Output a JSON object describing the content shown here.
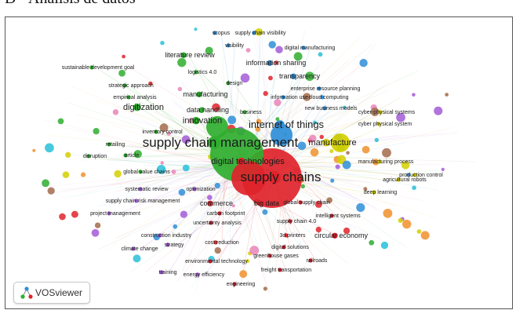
{
  "heading": "D - Análisis de datos",
  "software": "VOSviewer",
  "colors": {
    "red": "#e0232b",
    "green": "#2fae2f",
    "blue": "#2f8ed8",
    "yellow": "#d4cf00",
    "purple": "#a35ad6",
    "cyan": "#28c0d8",
    "orange": "#f0902c",
    "brown": "#a26b4b",
    "pink": "#e985b8"
  },
  "keywords": [
    {
      "label": "scopus",
      "color": "blue",
      "weight": 1
    },
    {
      "label": "supply chain visibility",
      "color": "blue",
      "weight": 1
    },
    {
      "label": "visibility",
      "color": "blue",
      "weight": 1
    },
    {
      "label": "digital manufacturing",
      "color": "blue",
      "weight": 1
    },
    {
      "label": "literature review",
      "color": "green",
      "weight": 2
    },
    {
      "label": "information sharing",
      "color": "blue",
      "weight": 2
    },
    {
      "label": "sustainable development goal",
      "color": "green",
      "weight": 1
    },
    {
      "label": "logistics 4.0",
      "color": "green",
      "weight": 1
    },
    {
      "label": "transparency",
      "color": "blue",
      "weight": 2
    },
    {
      "label": "enterprise resource planning",
      "color": "blue",
      "weight": 1
    },
    {
      "label": "strategic approach",
      "color": "green",
      "weight": 1
    },
    {
      "label": "design",
      "color": "green",
      "weight": 1
    },
    {
      "label": "empirical analysis",
      "color": "green",
      "weight": 1
    },
    {
      "label": "manufacturing",
      "color": "green",
      "weight": 2
    },
    {
      "label": "information use",
      "color": "blue",
      "weight": 1
    },
    {
      "label": "cloud computing",
      "color": "blue",
      "weight": 1
    },
    {
      "label": "digitization",
      "color": "green",
      "weight": 3
    },
    {
      "label": "new business models",
      "color": "blue",
      "weight": 1
    },
    {
      "label": "cyber-physical systems",
      "color": "yellow",
      "weight": 1
    },
    {
      "label": "data handling",
      "color": "green",
      "weight": 2
    },
    {
      "label": "business",
      "color": "green",
      "weight": 1
    },
    {
      "label": "cyber physical system",
      "color": "yellow",
      "weight": 1
    },
    {
      "label": "innovation",
      "color": "green",
      "weight": 3
    },
    {
      "label": "internet of things",
      "color": "blue",
      "weight": 4
    },
    {
      "label": "inventory control",
      "color": "green",
      "weight": 1
    },
    {
      "label": "supply chain management",
      "color": "green",
      "weight": 6
    },
    {
      "label": "manufacture",
      "color": "yellow",
      "weight": 3
    },
    {
      "label": "retailing",
      "color": "green",
      "weight": 1
    },
    {
      "label": "article",
      "color": "green",
      "weight": 1
    },
    {
      "label": "disruption",
      "color": "green",
      "weight": 1
    },
    {
      "label": "manufacturing process",
      "color": "yellow",
      "weight": 1
    },
    {
      "label": "digital technologies",
      "color": "red",
      "weight": 3
    },
    {
      "label": "global value chains",
      "color": "green",
      "weight": 1
    },
    {
      "label": "agricultural robots",
      "color": "yellow",
      "weight": 1
    },
    {
      "label": "production control",
      "color": "yellow",
      "weight": 1
    },
    {
      "label": "supply chains",
      "color": "red",
      "weight": 6
    },
    {
      "label": "systematic review",
      "color": "purple",
      "weight": 1
    },
    {
      "label": "optimization",
      "color": "purple",
      "weight": 1
    },
    {
      "label": "deep learning",
      "color": "yellow",
      "weight": 1
    },
    {
      "label": "supply chain risk management",
      "color": "purple",
      "weight": 1
    },
    {
      "label": "commerce",
      "color": "red",
      "weight": 2
    },
    {
      "label": "big data",
      "color": "red",
      "weight": 2
    },
    {
      "label": "global supply chain",
      "color": "red",
      "weight": 1
    },
    {
      "label": "intelligent systems",
      "color": "red",
      "weight": 1
    },
    {
      "label": "project management",
      "color": "purple",
      "weight": 1
    },
    {
      "label": "carbon footprint",
      "color": "red",
      "weight": 1
    },
    {
      "label": "uncertainty analysis",
      "color": "red",
      "weight": 1
    },
    {
      "label": "supply chain 4.0",
      "color": "red",
      "weight": 1
    },
    {
      "label": "construction industry",
      "color": "purple",
      "weight": 1
    },
    {
      "label": "3d printers",
      "color": "red",
      "weight": 1
    },
    {
      "label": "circular economy",
      "color": "red",
      "weight": 2
    },
    {
      "label": "strategy",
      "color": "purple",
      "weight": 1
    },
    {
      "label": "cost reduction",
      "color": "red",
      "weight": 1
    },
    {
      "label": "digital solutions",
      "color": "red",
      "weight": 1
    },
    {
      "label": "climate change",
      "color": "purple",
      "weight": 1
    },
    {
      "label": "environmental technology",
      "color": "red",
      "weight": 1
    },
    {
      "label": "greenhouse gases",
      "color": "red",
      "weight": 1
    },
    {
      "label": "railroads",
      "color": "red",
      "weight": 1
    },
    {
      "label": "training",
      "color": "purple",
      "weight": 1
    },
    {
      "label": "energy efficiency",
      "color": "purple",
      "weight": 1
    },
    {
      "label": "freight transportation",
      "color": "red",
      "weight": 1
    },
    {
      "label": "engineering",
      "color": "red",
      "weight": 1
    }
  ]
}
